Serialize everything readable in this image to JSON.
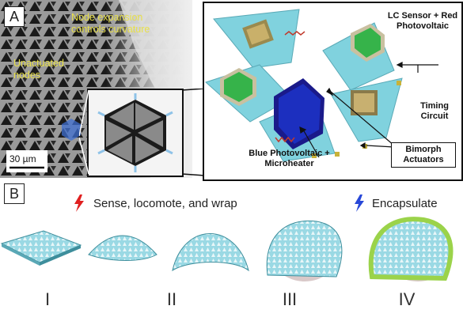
{
  "panel_a": {
    "letter": "A",
    "label_expansion": "Node expansion controls curvature",
    "label_unactuated": "Unactuated nodes",
    "scale_bar": "30 µm",
    "callouts": {
      "lc_sensor": "LC Sensor + Red Photovoltaic",
      "timing": "Timing Circuit",
      "bimorph": "Bimorph Actuators",
      "blue_pv": "Blue Photovoltaic + Microheater"
    }
  },
  "panel_b": {
    "letter": "B",
    "step1_label": "Sense, locomote, and wrap",
    "step2_label": "Encapsulate",
    "stages": [
      "I",
      "II",
      "III",
      "IV"
    ]
  },
  "colors": {
    "panel_bg_gray": "#6b6b6b",
    "cyan_panel": "#7fd3df",
    "green_pv": "#36b34a",
    "blue_pv": "#1c2fbf",
    "yellow_text": "#e8e04a",
    "encapsulate_green": "#9bd34a"
  }
}
